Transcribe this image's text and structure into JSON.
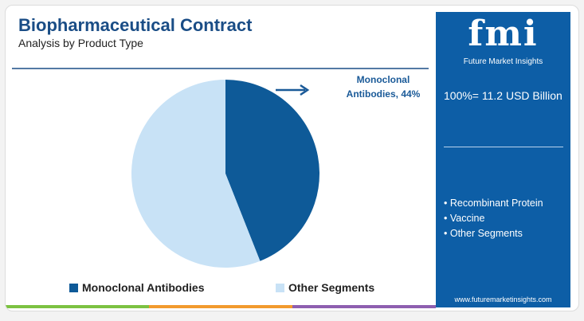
{
  "chart_data": {
    "type": "pie",
    "title": "Biopharmaceutical Contract",
    "subtitle": "Analysis by Product Type",
    "categories": [
      "Monoclonal Antibodies",
      "Other Segments"
    ],
    "values": [
      44,
      56
    ],
    "value_labels": [
      "Monoclonal Antibodies, 44%",
      null
    ],
    "colors": [
      "#0e5a98",
      "#c8e2f6"
    ],
    "legend": "bottom"
  },
  "sidebar": {
    "logo": "fmi",
    "brand": "Future Market Insights",
    "total": "100%= 11.2 USD Billion",
    "items": [
      "• Recombinant Protein",
      "• Vaccine",
      "• Other Segments"
    ],
    "url": "www.futuremarketinsights.com"
  }
}
